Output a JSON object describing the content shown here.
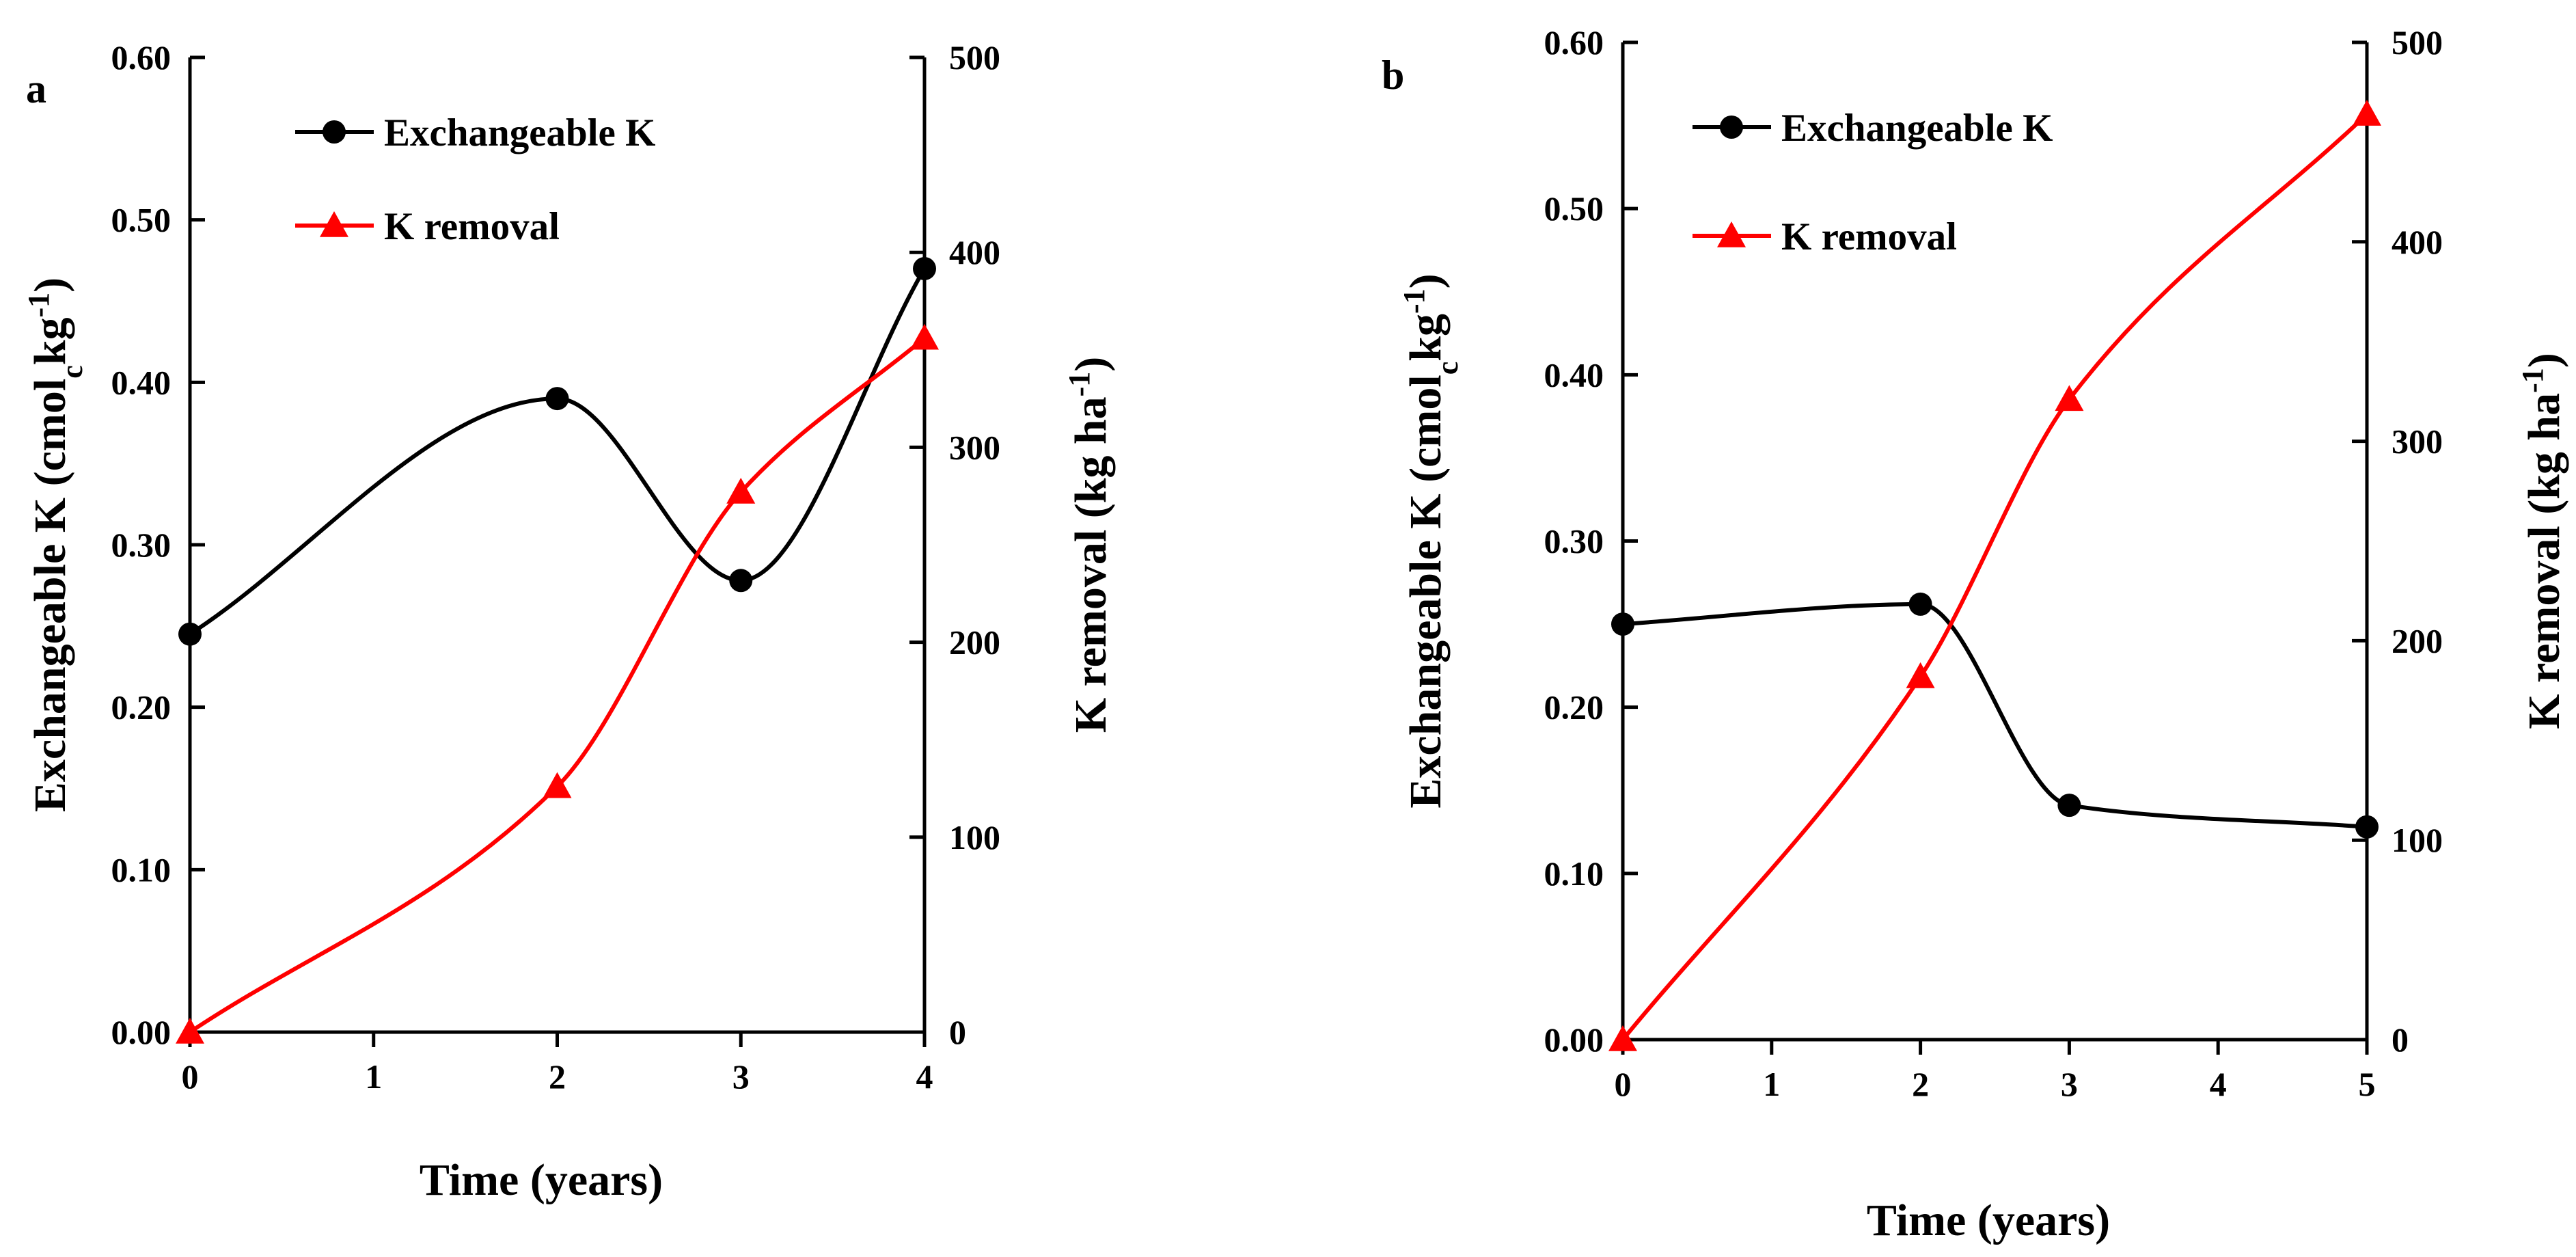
{
  "chart_data": [
    {
      "type": "line",
      "panel": "a",
      "xlabel": "Time (years)",
      "ylabel_left": "Exchangeable  K  (cmol",
      "ylabel_left_sub": "c",
      "ylabel_left_end": "kg",
      "ylabel_left_sup": "-1",
      "ylabel_left_close": ")",
      "ylabel_right": "K removal  (kg ha",
      "ylabel_right_sup": "-1",
      "ylabel_right_close": ")",
      "x_ticks": [
        "0",
        "1",
        "2",
        "3",
        "4"
      ],
      "xlim": [
        0,
        4
      ],
      "left_ticks": [
        "0.00",
        "0.10",
        "0.20",
        "0.30",
        "0.40",
        "0.50",
        "0.60"
      ],
      "ylim_left": [
        0,
        0.6
      ],
      "right_ticks": [
        "0",
        "100",
        "200",
        "300",
        "400",
        "500"
      ],
      "ylim_right": [
        0,
        500
      ],
      "legend_position": "top-left",
      "series": [
        {
          "name": "Exchangeable K",
          "axis": "left",
          "color": "#000000",
          "marker": "circle",
          "x": [
            0,
            2,
            3,
            4
          ],
          "y": [
            0.245,
            0.39,
            0.278,
            0.47
          ]
        },
        {
          "name": "K removal",
          "axis": "right",
          "color": "#ff0000",
          "marker": "triangle",
          "x": [
            0,
            2,
            3,
            4
          ],
          "y": [
            0,
            126,
            277,
            356
          ]
        }
      ]
    },
    {
      "type": "line",
      "panel": "b",
      "xlabel": "Time (years)",
      "ylabel_left": "Exchangeable  K  (cmol",
      "ylabel_left_sub": "c",
      "ylabel_left_end": "kg",
      "ylabel_left_sup": "-1",
      "ylabel_left_close": ")",
      "ylabel_right": "K removal  (kg ha",
      "ylabel_right_sup": "-1",
      "ylabel_right_close": ")",
      "x_ticks": [
        "0",
        "1",
        "2",
        "3",
        "4",
        "5"
      ],
      "xlim": [
        0,
        5
      ],
      "left_ticks": [
        "0.00",
        "0.10",
        "0.20",
        "0.30",
        "0.40",
        "0.50",
        "0.60"
      ],
      "ylim_left": [
        0,
        0.6
      ],
      "right_ticks": [
        "0",
        "100",
        "200",
        "300",
        "400",
        "500"
      ],
      "ylim_right": [
        0,
        500
      ],
      "legend_position": "top-left",
      "series": [
        {
          "name": "Exchangeable K",
          "axis": "left",
          "color": "#000000",
          "marker": "circle",
          "x": [
            0,
            2,
            3,
            5
          ],
          "y": [
            0.25,
            0.262,
            0.141,
            0.128
          ]
        },
        {
          "name": "K removal",
          "axis": "right",
          "color": "#ff0000",
          "marker": "triangle",
          "x": [
            0,
            2,
            3,
            5
          ],
          "y": [
            0,
            182,
            321,
            464
          ]
        }
      ]
    }
  ]
}
